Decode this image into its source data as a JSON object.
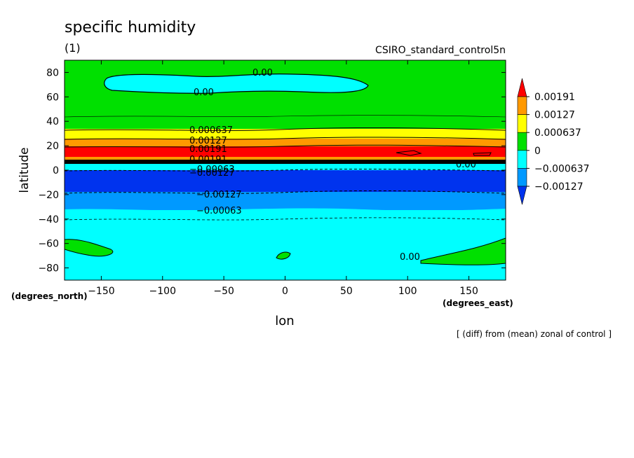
{
  "chart_data": {
    "type": "contour",
    "title": "specific humidity",
    "subtitle": "(1)",
    "run_label": "CSIRO_standard_control5n",
    "footnote": "[ (diff) from (mean) zonal of control ]",
    "xlabel": "lon",
    "ylabel": "latitude",
    "x_units": "(degrees_east)",
    "y_units": "(degrees_north)",
    "xlim": [
      -180,
      180
    ],
    "ylim": [
      -90,
      90
    ],
    "x_ticks": [
      -150,
      -100,
      -50,
      0,
      50,
      100,
      150
    ],
    "y_ticks": [
      -80,
      -60,
      -40,
      -20,
      0,
      20,
      40,
      60,
      80
    ],
    "colorbar": {
      "labels": [
        "0.00191",
        "0.00127",
        "0.000637",
        "0",
        "−0.000637",
        "−0.00127"
      ],
      "colors": [
        "#ff0000",
        "#ff9900",
        "#ffff00",
        "#00e000",
        "#00ffff",
        "#0099ff",
        "#0033ee"
      ]
    },
    "contour_labels": [
      "0.00",
      "0.00",
      "0.000637",
      "0.00127",
      "0.00191",
      "0.00191",
      "−0.00063",
      "−0.00127",
      "−0.00127",
      "−0.00063",
      "0.00",
      "0.00"
    ],
    "bands": [
      {
        "lat": [
          40,
          90
        ],
        "level": "0"
      },
      {
        "lat": [
          -10,
          40
        ],
        "level": "stepped positive/negative"
      },
      {
        "lat": [
          -90,
          -10
        ],
        "level": "negative"
      }
    ]
  }
}
